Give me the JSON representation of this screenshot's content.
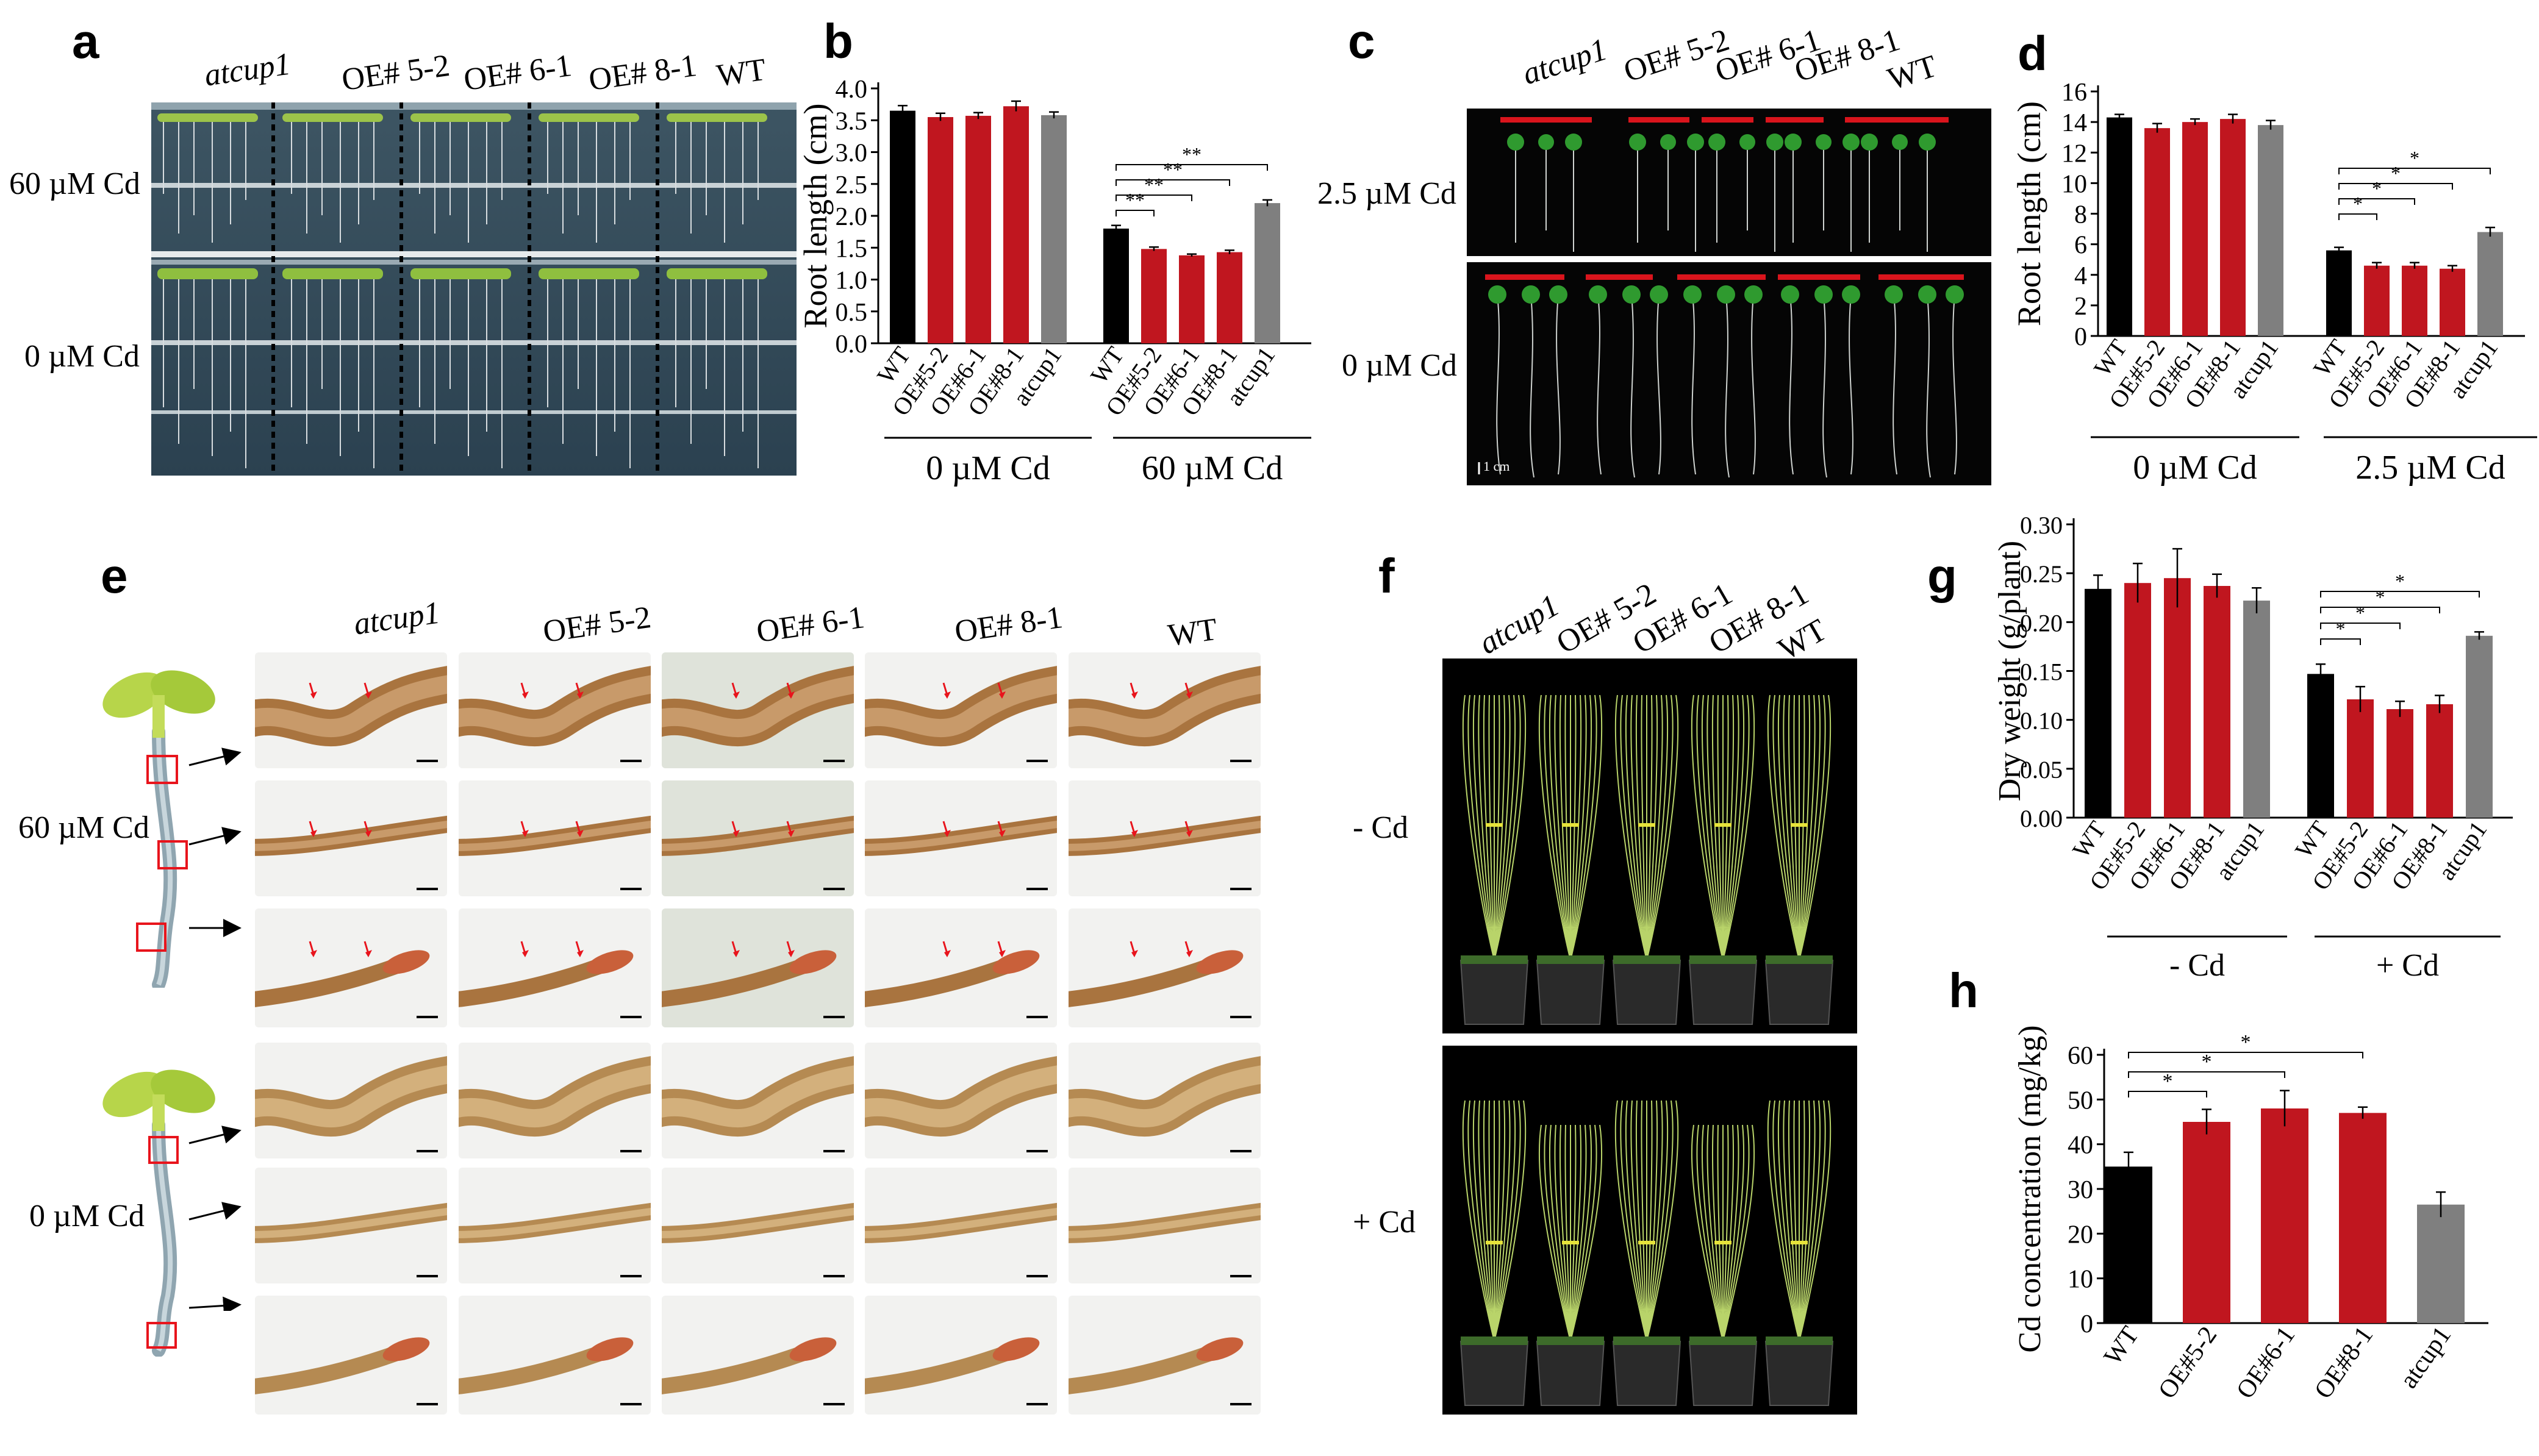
{
  "panel_letters": [
    "a",
    "b",
    "c",
    "d",
    "e",
    "f",
    "g",
    "h"
  ],
  "colors": {
    "wt": "#000000",
    "oe": "#c0161f",
    "atcup1": "#7f7f7f",
    "arrow": "#e8141c",
    "redbar": "#d9141c"
  },
  "panel_a": {
    "genotypes": [
      "atcup1",
      "OE# 5-2",
      "OE# 6-1",
      "OE# 8-1",
      "WT"
    ],
    "row_labels": [
      "60 µM Cd",
      "0 µM Cd"
    ]
  },
  "panel_c": {
    "genotypes": [
      "atcup1",
      "OE# 5-2",
      "OE# 6-1",
      "OE# 8-1",
      "WT"
    ],
    "row_labels": [
      "2.5 µM Cd",
      "0 µM Cd"
    ],
    "scale_text": "1 cm"
  },
  "panel_e": {
    "genotypes": [
      "atcup1",
      "OE# 5-2",
      "OE# 6-1",
      "OE# 8-1",
      "WT"
    ],
    "row_labels": [
      "60 µM Cd",
      "0 µM Cd"
    ]
  },
  "panel_f": {
    "genotypes": [
      "atcup1",
      "OE# 5-2",
      "OE# 6-1",
      "OE# 8-1",
      "WT"
    ],
    "row_labels": [
      "- Cd",
      "+ Cd"
    ]
  },
  "chart_data": [
    {
      "panel": "b",
      "type": "bar",
      "ylabel": "Root length (cm)",
      "ylim": [
        0,
        4.0
      ],
      "yticks": [
        "0.0",
        "0.5",
        "1.0",
        "1.5",
        "2.0",
        "2.5",
        "3.0",
        "3.5",
        "4.0"
      ],
      "categories": [
        "WT",
        "OE#5-2",
        "OE#6-1",
        "OE#8-1",
        "atcup1",
        "WT",
        "OE#5-2",
        "OE#6-1",
        "OE#8-1",
        "atcup1"
      ],
      "groups": [
        "0 µM Cd",
        "60 µM Cd"
      ],
      "values": [
        3.65,
        3.55,
        3.57,
        3.72,
        3.58,
        1.8,
        1.48,
        1.38,
        1.43,
        2.2
      ],
      "errors": [
        0.08,
        0.06,
        0.05,
        0.08,
        0.05,
        0.05,
        0.03,
        0.02,
        0.03,
        0.05
      ],
      "significance": [
        "**",
        "**",
        "**",
        "**"
      ]
    },
    {
      "panel": "d",
      "type": "bar",
      "ylabel": "Root length (cm)",
      "ylim": [
        0,
        16
      ],
      "yticks": [
        "0",
        "2",
        "4",
        "6",
        "8",
        "10",
        "12",
        "14",
        "16"
      ],
      "categories": [
        "WT",
        "OE#5-2",
        "OE#6-1",
        "OE#8-1",
        "atcup1",
        "WT",
        "OE#5-2",
        "OE#6-1",
        "OE#8-1",
        "atcup1"
      ],
      "groups": [
        "0 µM Cd",
        "2.5 µM Cd"
      ],
      "values": [
        14.3,
        13.6,
        14.0,
        14.2,
        13.8,
        5.6,
        4.6,
        4.6,
        4.4,
        6.8
      ],
      "errors": [
        0.2,
        0.3,
        0.2,
        0.3,
        0.3,
        0.2,
        0.2,
        0.2,
        0.2,
        0.3
      ],
      "significance": [
        "*",
        "*",
        "*",
        "*"
      ]
    },
    {
      "panel": "g",
      "type": "bar",
      "ylabel": "Dry weight (g/plant)",
      "ylim": [
        0,
        0.3
      ],
      "yticks": [
        "0.00",
        "0.05",
        "0.10",
        "0.15",
        "0.20",
        "0.25",
        "0.30"
      ],
      "categories": [
        "WT",
        "OE#5-2",
        "OE#6-1",
        "OE#8-1",
        "atcup1",
        "WT",
        "OE#5-2",
        "OE#6-1",
        "OE#8-1",
        "atcup1"
      ],
      "groups": [
        "- Cd",
        "+ Cd"
      ],
      "values": [
        0.234,
        0.24,
        0.245,
        0.237,
        0.222,
        0.147,
        0.121,
        0.111,
        0.116,
        0.186
      ],
      "errors": [
        0.014,
        0.02,
        0.03,
        0.012,
        0.013,
        0.01,
        0.013,
        0.008,
        0.009,
        0.004
      ],
      "significance": [
        "*",
        "*",
        "*",
        "*"
      ]
    },
    {
      "panel": "h",
      "type": "bar",
      "ylabel": "Cd concentration (mg/kg)",
      "ylim": [
        0,
        60
      ],
      "yticks": [
        "0",
        "10",
        "20",
        "30",
        "40",
        "50",
        "60"
      ],
      "categories": [
        "WT",
        "OE#5-2",
        "OE#6-1",
        "OE#8-1",
        "atcup1"
      ],
      "values": [
        35,
        45,
        48,
        47,
        26.5
      ],
      "errors": [
        3.2,
        2.8,
        4,
        1.3,
        2.8
      ],
      "significance": [
        "*",
        "*",
        "*"
      ]
    }
  ]
}
